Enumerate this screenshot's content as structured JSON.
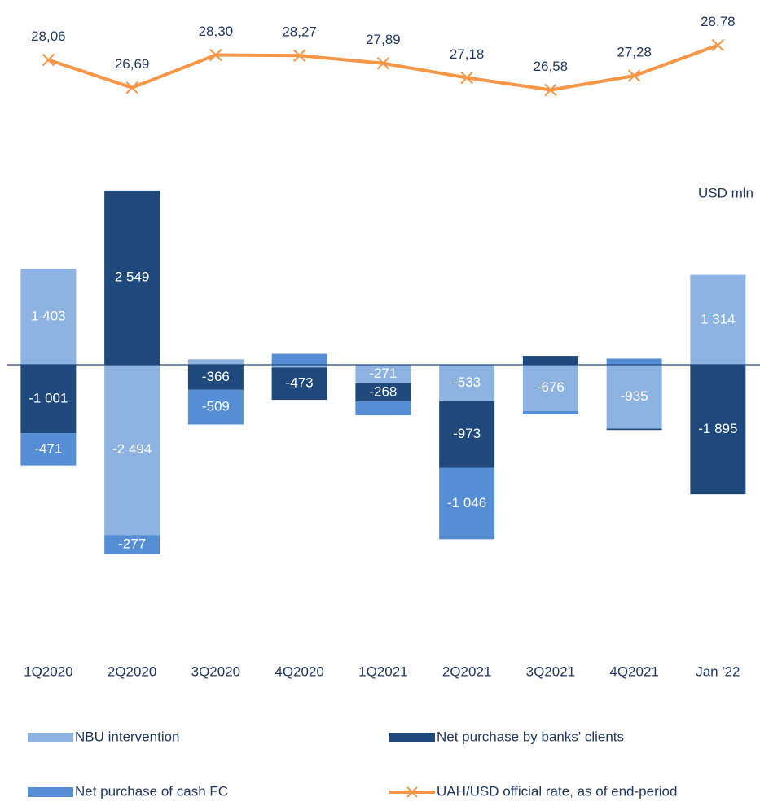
{
  "chart_data": {
    "type": "bar",
    "stacked": true,
    "annotation": "USD mln",
    "categories": [
      "1Q2020",
      "2Q2020",
      "3Q2020",
      "4Q2020",
      "1Q2021",
      "2Q2021",
      "3Q2021",
      "4Q2021",
      "Jan '22"
    ],
    "ylim": [
      -4000,
      3500
    ],
    "y2lim": [
      24,
      31
    ],
    "series": [
      {
        "name": "NBU intervention",
        "color": "#8db3e2",
        "values": [
          1403,
          -2494,
          80,
          -40,
          -271,
          -533,
          -676,
          -935,
          1314
        ],
        "value_labels": [
          "1 403",
          "-2 494",
          null,
          null,
          "-271",
          "-533",
          "-676",
          "-935",
          "1 314"
        ]
      },
      {
        "name": "Net purchase by banks' clients",
        "color": "#1f497d",
        "values": [
          -1001,
          2549,
          -366,
          -473,
          -268,
          -973,
          130,
          -20,
          -1895
        ],
        "value_labels": [
          "-1 001",
          "2 549",
          "-366",
          "-473",
          "-268",
          "-973",
          null,
          null,
          "-1 895"
        ]
      },
      {
        "name": "Net purchase of cash FC",
        "color": "#558ed5",
        "values": [
          -471,
          -277,
          -509,
          160,
          -200,
          -1046,
          -50,
          90,
          null
        ],
        "value_labels": [
          "-471",
          "-277",
          "-509",
          null,
          null,
          "-1 046",
          null,
          null,
          null
        ]
      },
      {
        "name": "UAH/USD official rate, as of end-period",
        "color": "#f79646",
        "type": "line",
        "axis": "y2",
        "values": [
          28.06,
          26.69,
          28.3,
          28.27,
          27.89,
          27.18,
          26.58,
          27.28,
          28.78
        ],
        "value_labels": [
          "28,06",
          "26,69",
          "28,30",
          "28,27",
          "27,89",
          "27,18",
          "26,58",
          "27,28",
          "28,78"
        ]
      }
    ]
  }
}
